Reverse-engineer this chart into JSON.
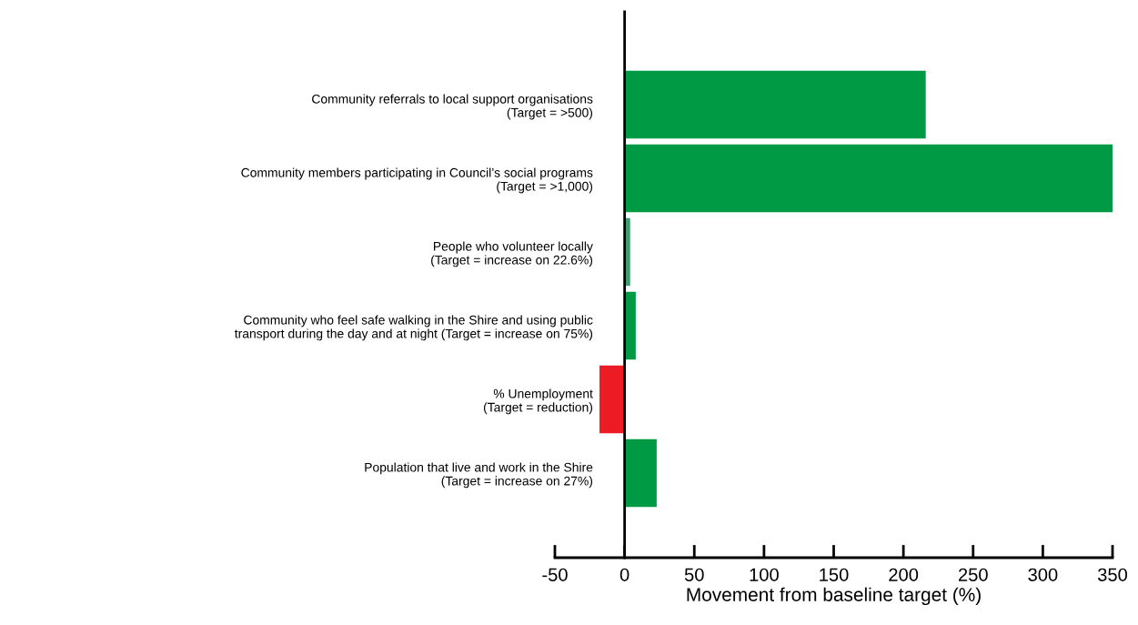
{
  "chart_data": {
    "type": "bar",
    "orientation": "horizontal",
    "categories": [
      "Community referrals to local support organisations\n(Target = >500)",
      "Community members participating in Council’s social programs\n(Target = >1,000)",
      "People who volunteer locally\n(Target = increase on 22.6%)",
      "Community who feel safe walking in the Shire and using public\ntransport during the day and at night (Target = increase on 75%)",
      "% Unemployment\n(Target = reduction)",
      "Population that live and work in the Shire\n(Target = increase on 27%)"
    ],
    "values": [
      216,
      350,
      4,
      8,
      -18,
      23
    ],
    "colors": [
      "#009a44",
      "#009a44",
      "#3f9e6c",
      "#009a44",
      "#ed1c24",
      "#009a44"
    ],
    "xlim": [
      -50,
      350
    ],
    "xticks": [
      -50,
      0,
      50,
      100,
      150,
      200,
      250,
      300,
      350
    ],
    "xlabel": "Movement from baseline target (%)",
    "grid": false,
    "legend": false
  }
}
